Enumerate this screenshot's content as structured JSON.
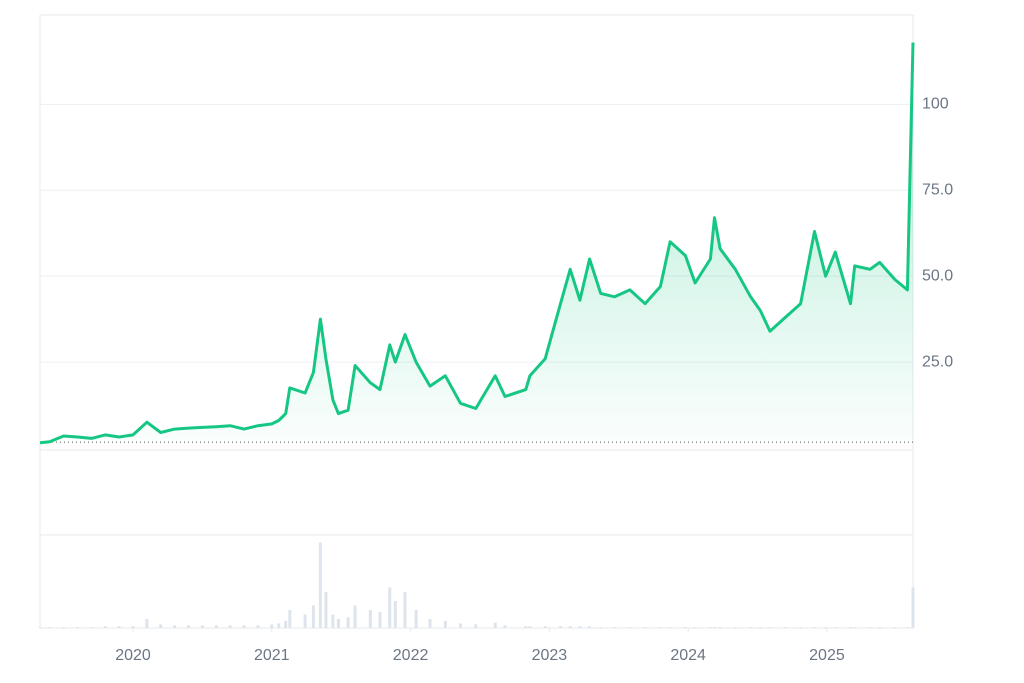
{
  "chart_data": {
    "type": "line",
    "x": [
      2019.33,
      2019.4,
      2019.5,
      2019.6,
      2019.7,
      2019.8,
      2019.9,
      2020.0,
      2020.1,
      2020.2,
      2020.3,
      2020.4,
      2020.5,
      2020.6,
      2020.7,
      2020.8,
      2020.9,
      2021.0,
      2021.05,
      2021.1,
      2021.13,
      2021.24,
      2021.3,
      2021.35,
      2021.39,
      2021.44,
      2021.48,
      2021.55,
      2021.6,
      2021.71,
      2021.78,
      2021.85,
      2021.89,
      2021.96,
      2022.04,
      2022.14,
      2022.25,
      2022.36,
      2022.47,
      2022.61,
      2022.68,
      2022.83,
      2022.86,
      2022.97,
      2023.08,
      2023.15,
      2023.22,
      2023.29,
      2023.37,
      2023.47,
      2023.58,
      2023.69,
      2023.8,
      2023.87,
      2023.98,
      2024.05,
      2024.16,
      2024.19,
      2024.23,
      2024.34,
      2024.45,
      2024.52,
      2024.59,
      2024.7,
      2024.81,
      2024.91,
      2024.99,
      2025.06,
      2025.17,
      2025.2,
      2025.31,
      2025.38,
      2025.49,
      2025.58,
      2025.62
    ],
    "series": [
      {
        "color": "#16c784",
        "values": [
          1.5,
          1.8,
          3.5,
          3.2,
          2.8,
          3.8,
          3.2,
          3.8,
          7.5,
          4.5,
          5.5,
          5.8,
          6,
          6.2,
          6.5,
          5.5,
          6.5,
          7,
          8,
          10,
          17.5,
          16,
          22,
          37.5,
          26,
          14,
          10,
          11,
          24,
          19,
          17,
          30,
          25,
          33,
          25,
          18,
          21,
          13,
          11.5,
          21,
          15,
          17,
          21,
          26,
          42,
          52,
          43,
          55,
          45,
          44,
          46,
          42,
          47,
          60,
          56,
          48,
          55,
          67,
          58,
          52,
          44,
          40,
          34,
          38,
          42,
          63,
          50,
          57,
          42,
          53,
          52,
          54,
          49,
          46,
          118
        ]
      }
    ],
    "volume": {
      "color": "#dde4ec",
      "values": [
        1,
        1,
        1,
        1,
        1,
        2,
        2,
        2,
        10,
        4,
        3,
        3,
        3,
        3,
        3,
        3,
        3,
        4,
        5,
        8,
        20,
        15,
        25,
        95,
        40,
        15,
        10,
        12,
        25,
        20,
        18,
        45,
        30,
        40,
        20,
        10,
        8,
        5,
        4,
        6,
        3,
        2,
        2,
        2,
        2,
        2,
        2,
        2,
        1,
        1,
        1,
        1,
        1,
        1,
        1,
        1,
        1,
        1,
        1,
        1,
        1,
        1,
        1,
        1,
        1,
        1,
        1,
        1,
        1,
        1,
        1,
        1,
        1,
        1,
        45
      ],
      "vlim": [
        0,
        100
      ]
    },
    "baseline": 1.7,
    "xlim": [
      2019.33,
      2025.62
    ],
    "xticks": [
      2020,
      2021,
      2022,
      2023,
      2024,
      2025
    ],
    "ylim": [
      0,
      126
    ],
    "yticks": [
      {
        "value": 25,
        "label": "25.0"
      },
      {
        "value": 50,
        "label": "50.0"
      },
      {
        "value": 75,
        "label": "75.0"
      },
      100
    ],
    "grid": true
  }
}
